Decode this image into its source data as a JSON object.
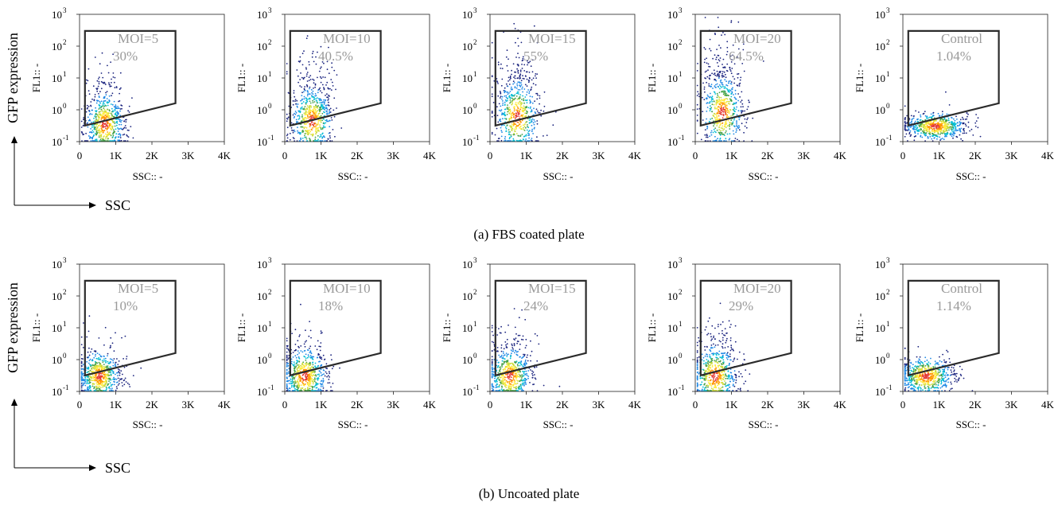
{
  "panels": [
    {
      "caption": "(a)  FBS coated plate",
      "y_axis_title": "GFP expression",
      "x_axis_title": "SSC",
      "plots": [
        {
          "gate_label": "MOI=5",
          "gate_value": "30%"
        },
        {
          "gate_label": "MOI=10",
          "gate_value": "40.5%"
        },
        {
          "gate_label": "MOI=15",
          "gate_value": "55%"
        },
        {
          "gate_label": "MOI=20",
          "gate_value": "64.5%"
        },
        {
          "gate_label": "Control",
          "gate_value": "1.04%"
        }
      ]
    },
    {
      "caption": "(b)  Uncoated plate",
      "y_axis_title": "GFP expression",
      "x_axis_title": "SSC",
      "plots": [
        {
          "gate_label": "MOI=5",
          "gate_value": "10%"
        },
        {
          "gate_label": "MOI=10",
          "gate_value": "18%"
        },
        {
          "gate_label": "MOI=15",
          "gate_value": "24%"
        },
        {
          "gate_label": "MOI=20",
          "gate_value": "29%"
        },
        {
          "gate_label": "Control",
          "gate_value": "1.14%"
        }
      ]
    }
  ],
  "axis": {
    "xlabel": "SSC:: -",
    "ylabel": "FL1:: -",
    "x_ticks": [
      "0",
      "1K",
      "2K",
      "3K",
      "4K"
    ],
    "y_tick_bases": [
      "10",
      "10",
      "10",
      "10",
      "10"
    ],
    "y_tick_exponents": [
      "-1",
      "0",
      "1",
      "2",
      "3"
    ]
  },
  "colors": {
    "gate": "#2b2b2b",
    "gate_label": "#9a9a9a",
    "density": [
      "#1a237e",
      "#1e88e5",
      "#00bcd4",
      "#43a047",
      "#cddc39",
      "#ffeb3b",
      "#ff9800",
      "#e53935"
    ]
  },
  "chart_data": [
    {
      "type": "scatter",
      "title": "(a)  FBS coated plate",
      "xlabel": "SSC:: -",
      "ylabel": "FL1:: -",
      "xlim": [
        0,
        4000
      ],
      "ylim": [
        0.1,
        1000
      ],
      "y_scale": "log",
      "series": [
        {
          "name": "MOI=5",
          "gated_percent": 30,
          "center": [
            700,
            0.35
          ],
          "spread": [
            280,
            0.55
          ],
          "gated_fraction": 0.3
        },
        {
          "name": "MOI=10",
          "gated_percent": 40.5,
          "center": [
            750,
            0.45
          ],
          "spread": [
            300,
            0.6
          ],
          "gated_fraction": 0.405
        },
        {
          "name": "MOI=15",
          "gated_percent": 55,
          "center": [
            750,
            0.6
          ],
          "spread": [
            300,
            0.65
          ],
          "gated_fraction": 0.55
        },
        {
          "name": "MOI=20",
          "gated_percent": 64.5,
          "center": [
            750,
            0.8
          ],
          "spread": [
            300,
            0.65
          ],
          "gated_fraction": 0.645
        },
        {
          "name": "Control",
          "gated_percent": 1.04,
          "center": [
            900,
            0.3
          ],
          "spread": [
            450,
            0.25
          ],
          "gated_fraction": 0.01
        }
      ]
    },
    {
      "type": "scatter",
      "title": "(b)  Uncoated plate",
      "xlabel": "SSC:: -",
      "ylabel": "FL1:: -",
      "xlim": [
        0,
        4000
      ],
      "ylim": [
        0.1,
        1000
      ],
      "y_scale": "log",
      "series": [
        {
          "name": "MOI=5",
          "gated_percent": 10,
          "center": [
            550,
            0.3
          ],
          "spread": [
            300,
            0.45
          ],
          "gated_fraction": 0.1
        },
        {
          "name": "MOI=10",
          "gated_percent": 18,
          "center": [
            550,
            0.3
          ],
          "spread": [
            320,
            0.5
          ],
          "gated_fraction": 0.18
        },
        {
          "name": "MOI=15",
          "gated_percent": 24,
          "center": [
            550,
            0.3
          ],
          "spread": [
            320,
            0.5
          ],
          "gated_fraction": 0.24
        },
        {
          "name": "MOI=20",
          "gated_percent": 29,
          "center": [
            550,
            0.3
          ],
          "spread": [
            320,
            0.55
          ],
          "gated_fraction": 0.29
        },
        {
          "name": "Control",
          "gated_percent": 1.14,
          "center": [
            650,
            0.3
          ],
          "spread": [
            400,
            0.35
          ],
          "gated_fraction": 0.01
        }
      ]
    }
  ]
}
